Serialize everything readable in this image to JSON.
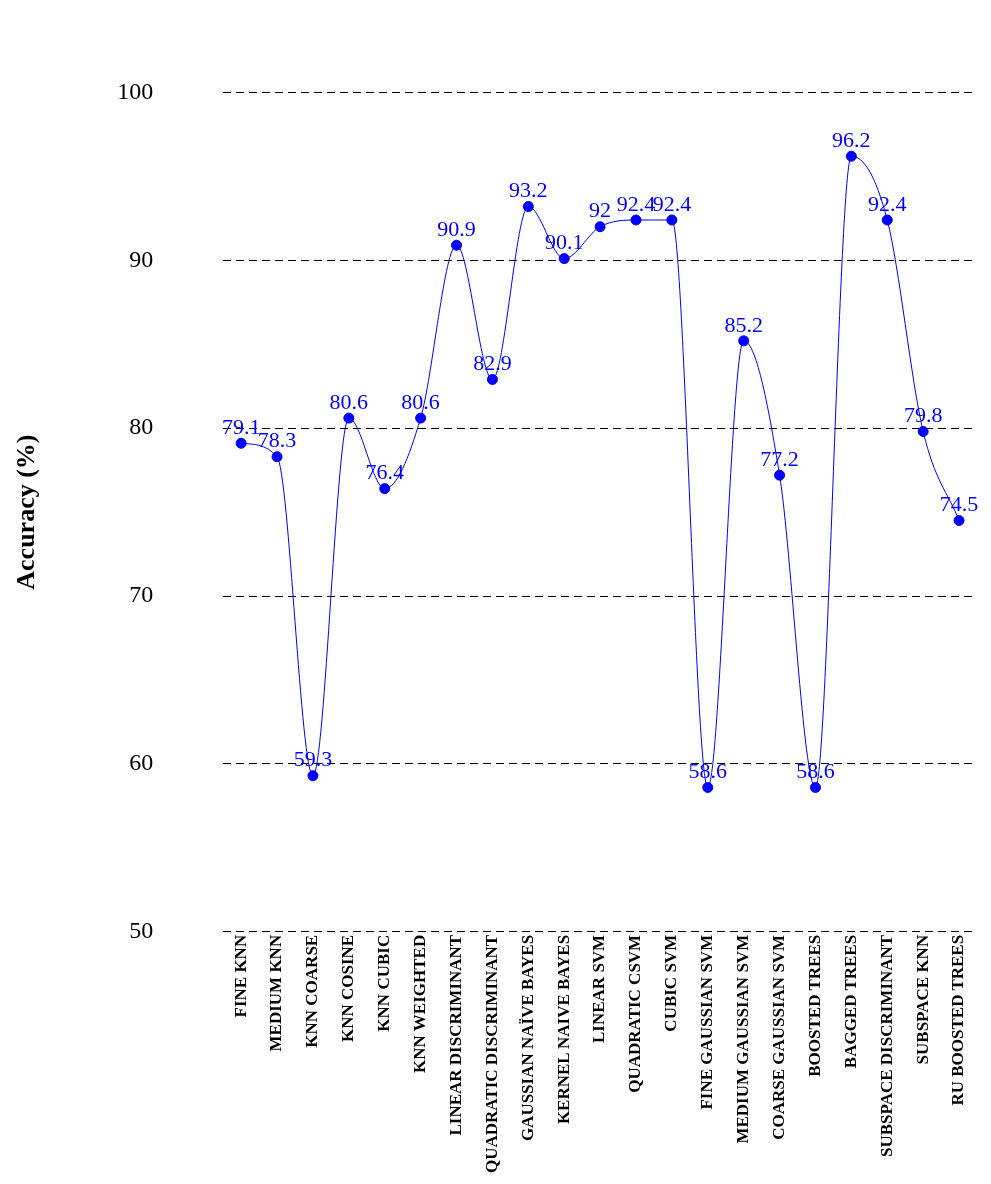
{
  "chart_data": {
    "type": "line",
    "ylabel": "Accuracy (%)",
    "categories": [
      "FINE KNN",
      "MEDIUM KNN",
      "KNN COARSE",
      "KNN COSINE",
      "KNN CUBIC",
      "KNN WEIGHTED",
      "LINEAR DISCRIMINANT",
      "QUADRATIC DISCRIMINANT",
      "GAUSSIAN NAÏVE BAYES",
      "KERNEL NAIVE BAYES",
      "LINEAR SVM",
      "QUADRATIC CSVM",
      "CUBIC SVM",
      "FINE GAUSSIAN SVM",
      "MEDIUM GAUSSIAN SVM",
      "COARSE GAUSSIAN SVM",
      "BOOSTED TREES",
      "BAGGED TREES",
      "SUBSPACE DISCRIMINANT",
      "SUBSPACE KNN",
      "RU BOOSTED TREES"
    ],
    "series": [
      {
        "color": "#0000ff",
        "values": [
          79.1,
          78.3,
          59.3,
          80.6,
          76.4,
          80.6,
          90.9,
          82.9,
          93.2,
          90.1,
          92,
          92.4,
          92.4,
          58.6,
          85.2,
          77.2,
          58.6,
          96.2,
          92.4,
          79.8,
          74.5
        ]
      }
    ],
    "ylim": [
      50,
      100
    ],
    "yticks": [
      50,
      60,
      70,
      80,
      90,
      100
    ],
    "grid": "y",
    "marker": "circle",
    "line_style": "solid",
    "data_labels": true,
    "legend": false
  }
}
